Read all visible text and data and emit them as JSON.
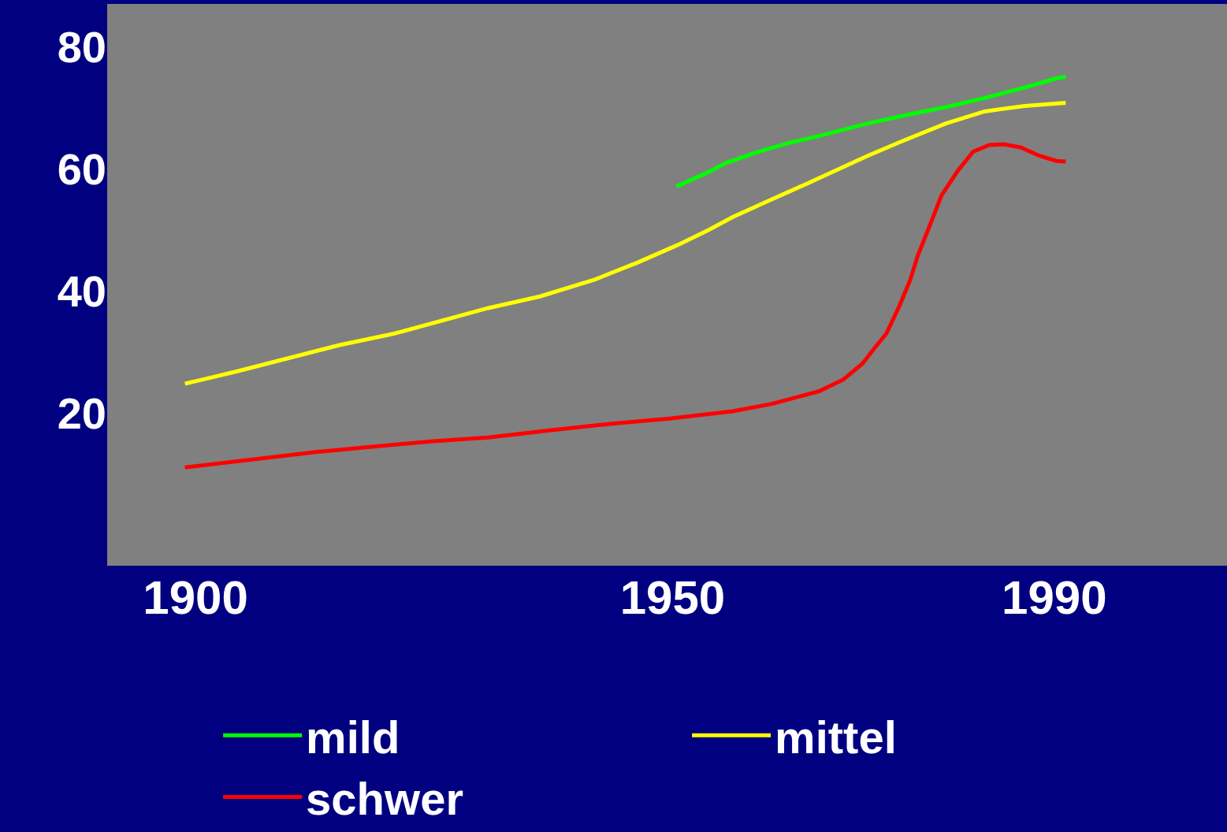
{
  "chart_data": {
    "type": "line",
    "xlim": [
      1890.75,
      2008.1
    ],
    "ylim": [
      -5,
      87
    ],
    "xticks": [
      1900,
      1950,
      1990
    ],
    "yticks": [
      20,
      40,
      60,
      80
    ],
    "grid": false,
    "legend": "bottom",
    "marker": "none",
    "line_style": "solid",
    "series": [
      {
        "name": "mild",
        "color": "#00ff00",
        "x": [
          1950.4,
          1953.8,
          1955.5,
          1958.8,
          1962.1,
          1965.4,
          1970.4,
          1974.5,
          1978.6,
          1982.7,
          1986.9,
          1990.2,
          1991.2
        ],
        "values": [
          57.1,
          59.5,
          60.9,
          62.7,
          64.2,
          65.4,
          67.4,
          68.8,
          70.1,
          71.6,
          73.3,
          74.8,
          75.1
        ]
      },
      {
        "name": "mittel",
        "color": "#ffff00",
        "x": [
          1898.9,
          1904.3,
          1915.0,
          1920.8,
          1930.7,
          1936.1,
          1941.9,
          1946.4,
          1950.5,
          1953.8,
          1956.3,
          1960.4,
          1963.7,
          1970.4,
          1973.7,
          1978.6,
          1982.7,
          1986.9,
          1991.2
        ],
        "values": [
          24.8,
          26.8,
          31.1,
          33.0,
          37.2,
          39.1,
          41.9,
          44.7,
          47.5,
          50.0,
          52.1,
          55.0,
          57.3,
          62.1,
          64.3,
          67.4,
          69.4,
          70.3,
          70.8
        ]
      },
      {
        "name": "schwer",
        "color": "#ff0000",
        "x": [
          1898.9,
          1912.6,
          1924.9,
          1930.7,
          1937.3,
          1943.9,
          1949.7,
          1956.3,
          1960.4,
          1965.4,
          1967.9,
          1969.9,
          1971.2,
          1972.4,
          1973.7,
          1974.9,
          1975.7,
          1977.0,
          1978.2,
          1979.9,
          1981.5,
          1983.2,
          1984.8,
          1986.5,
          1988.5,
          1990.2,
          1991.2
        ],
        "values": [
          11.1,
          13.6,
          15.4,
          16.0,
          17.2,
          18.3,
          19.1,
          20.3,
          21.5,
          23.6,
          25.5,
          28.1,
          30.7,
          33.0,
          37.3,
          41.8,
          45.8,
          50.9,
          55.7,
          59.7,
          62.8,
          63.9,
          64.0,
          63.5,
          62.1,
          61.3,
          61.2
        ]
      }
    ]
  }
}
